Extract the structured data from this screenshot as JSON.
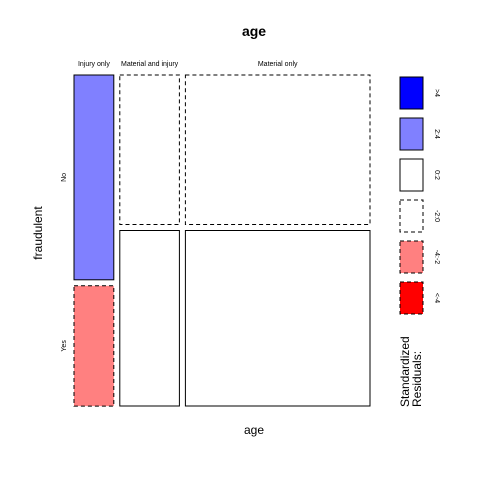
{
  "chart_data": {
    "type": "mosaic",
    "title": "age",
    "xlabel": "age",
    "ylabel": "fraudulent",
    "x_categories": [
      "Injury only",
      "Material and injury",
      "Material only"
    ],
    "y_categories": [
      "No",
      "Yes"
    ],
    "cells": [
      {
        "x": "Injury only",
        "y": "No",
        "proportion_x": 0.14,
        "proportion_y_within_x": 0.63,
        "residual_class": "2:4"
      },
      {
        "x": "Injury only",
        "y": "Yes",
        "proportion_x": 0.14,
        "proportion_y_within_x": 0.37,
        "residual_class": "-4:-2"
      },
      {
        "x": "Material and injury",
        "y": "No",
        "proportion_x": 0.21,
        "proportion_y_within_x": 0.46,
        "residual_class": "-2:0"
      },
      {
        "x": "Material and injury",
        "y": "Yes",
        "proportion_x": 0.21,
        "proportion_y_within_x": 0.54,
        "residual_class": "0:2"
      },
      {
        "x": "Material only",
        "y": "No",
        "proportion_x": 0.65,
        "proportion_y_within_x": 0.46,
        "residual_class": "-2:0"
      },
      {
        "x": "Material only",
        "y": "Yes",
        "proportion_x": 0.65,
        "proportion_y_within_x": 0.54,
        "residual_class": "0:2"
      }
    ],
    "legend": {
      "title_lines": [
        "Standardized",
        "Residuals:"
      ],
      "position": "right",
      "items": [
        {
          "label": ">4",
          "color": "#0000ff",
          "dashed": false
        },
        {
          "label": "2:4",
          "color": "#8080ff",
          "dashed": false
        },
        {
          "label": "0:2",
          "color": "#ffffff",
          "dashed": false
        },
        {
          "label": "-2:0",
          "color": "#ffffff",
          "dashed": true
        },
        {
          "label": "-4:-2",
          "color": "#ff8080",
          "dashed": true
        },
        {
          "label": "<-4",
          "color": "#ff0000",
          "dashed": true
        }
      ]
    }
  }
}
